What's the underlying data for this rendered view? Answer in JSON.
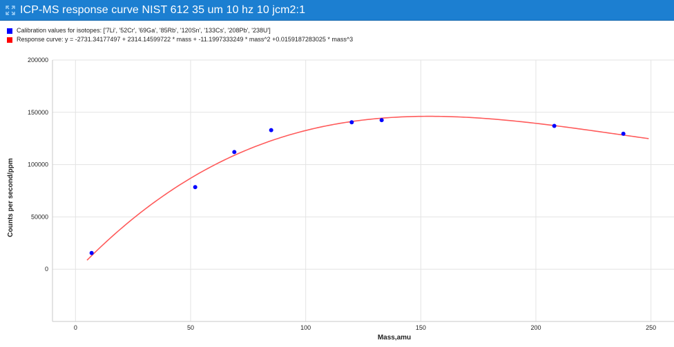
{
  "window": {
    "title": "ICP-MS response curve NIST 612 35 um 10 hz 10 jcm2:1",
    "icon": "expand-arrows-icon"
  },
  "chart_data": {
    "type": "scatter",
    "xlabel": "Mass,amu",
    "ylabel": "Counts per second/ppm",
    "xlim": [
      -10,
      260
    ],
    "ylim": [
      -50000,
      200000
    ],
    "x_ticks": [
      0,
      50,
      100,
      150,
      200,
      250
    ],
    "y_ticks": [
      0,
      50000,
      100000,
      150000,
      200000
    ],
    "grid": true,
    "legend_position": "top-left",
    "series": [
      {
        "name": "Calibration values for isotopes: ['7Li', '52Cr', '69Ga', '85Rb', '120Sn', '133Cs', '208Pb', '238U']",
        "kind": "scatter",
        "color": "#0000ff",
        "x": [
          7,
          52,
          69,
          85,
          120,
          133,
          208,
          238
        ],
        "y": [
          15500,
          78500,
          112000,
          133000,
          140500,
          142500,
          137000,
          129500
        ]
      },
      {
        "name": "Response curve: y = -2731.34177497 + 2314.14599722 * mass + -11.1997333249 * mass^2 +0.0159187283025 * mass^3",
        "kind": "line",
        "color": "#ff5a5a",
        "x_range": [
          5,
          249
        ],
        "coefficients": [
          -2731.34177497,
          2314.14599722,
          -11.1997333249,
          0.0159187283025
        ]
      }
    ]
  }
}
